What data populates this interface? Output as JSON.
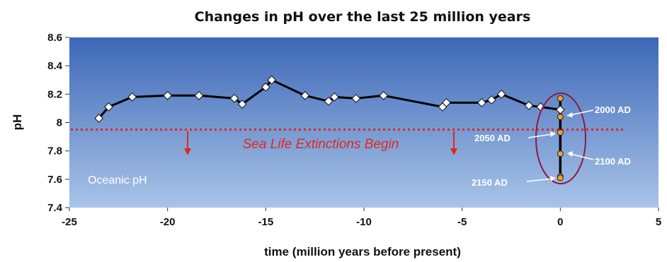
{
  "chart_data": {
    "type": "line",
    "title": "Changes in pH over the last 25 million years",
    "xlabel": "time (million years before present)",
    "ylabel": "pH",
    "xlim": [
      -25,
      5
    ],
    "ylim": [
      7.4,
      8.6
    ],
    "x_ticks": [
      -25,
      -20,
      -15,
      -10,
      -5,
      0,
      5
    ],
    "x_tick_labels": [
      "-25",
      "-20",
      "-15",
      "-10",
      "-5",
      "0",
      "5"
    ],
    "y_ticks": [
      7.4,
      7.6,
      7.8,
      8.0,
      8.2,
      8.4,
      8.6
    ],
    "y_tick_labels": [
      "7.4",
      "7.6",
      "7.8",
      "8",
      "8.2",
      "8.4",
      "8.6"
    ],
    "series": [
      {
        "x": [
          -23.5,
          -23.0,
          -21.8,
          -20.0,
          -18.4,
          -16.6,
          -16.2,
          -15.0,
          -14.7,
          -13.0,
          -11.8,
          -11.5,
          -10.4,
          -9.0,
          -6.0,
          -5.8,
          -4.0,
          -3.5,
          -3.0,
          -1.6,
          -1.0,
          0.0
        ],
        "y": [
          8.03,
          8.11,
          8.18,
          8.19,
          8.19,
          8.17,
          8.13,
          8.25,
          8.3,
          8.19,
          8.15,
          8.18,
          8.17,
          8.19,
          8.11,
          8.14,
          8.14,
          8.16,
          8.2,
          8.12,
          8.11,
          8.09
        ],
        "color": "#000000"
      },
      {
        "x": [
          0,
          0,
          0,
          0,
          0,
          0
        ],
        "y": [
          8.17,
          8.04,
          7.93,
          7.78,
          7.62,
          7.61
        ],
        "color": "#000000",
        "marker_color": "#f0a030"
      }
    ],
    "threshold": {
      "y": 7.95,
      "color": "#e0281e",
      "style": "dotted"
    },
    "annotations": {
      "extinction_text": "Sea Life Extinctions Begin",
      "oceanic_text": "Oceanic pH",
      "labels": [
        "2000 AD",
        "2050 AD",
        "2100 AD",
        "2150 AD"
      ]
    },
    "ellipse_color": "#8a1a4a",
    "plot_background": [
      "#3d68b8",
      "#a9c4e8"
    ],
    "grid": false
  }
}
